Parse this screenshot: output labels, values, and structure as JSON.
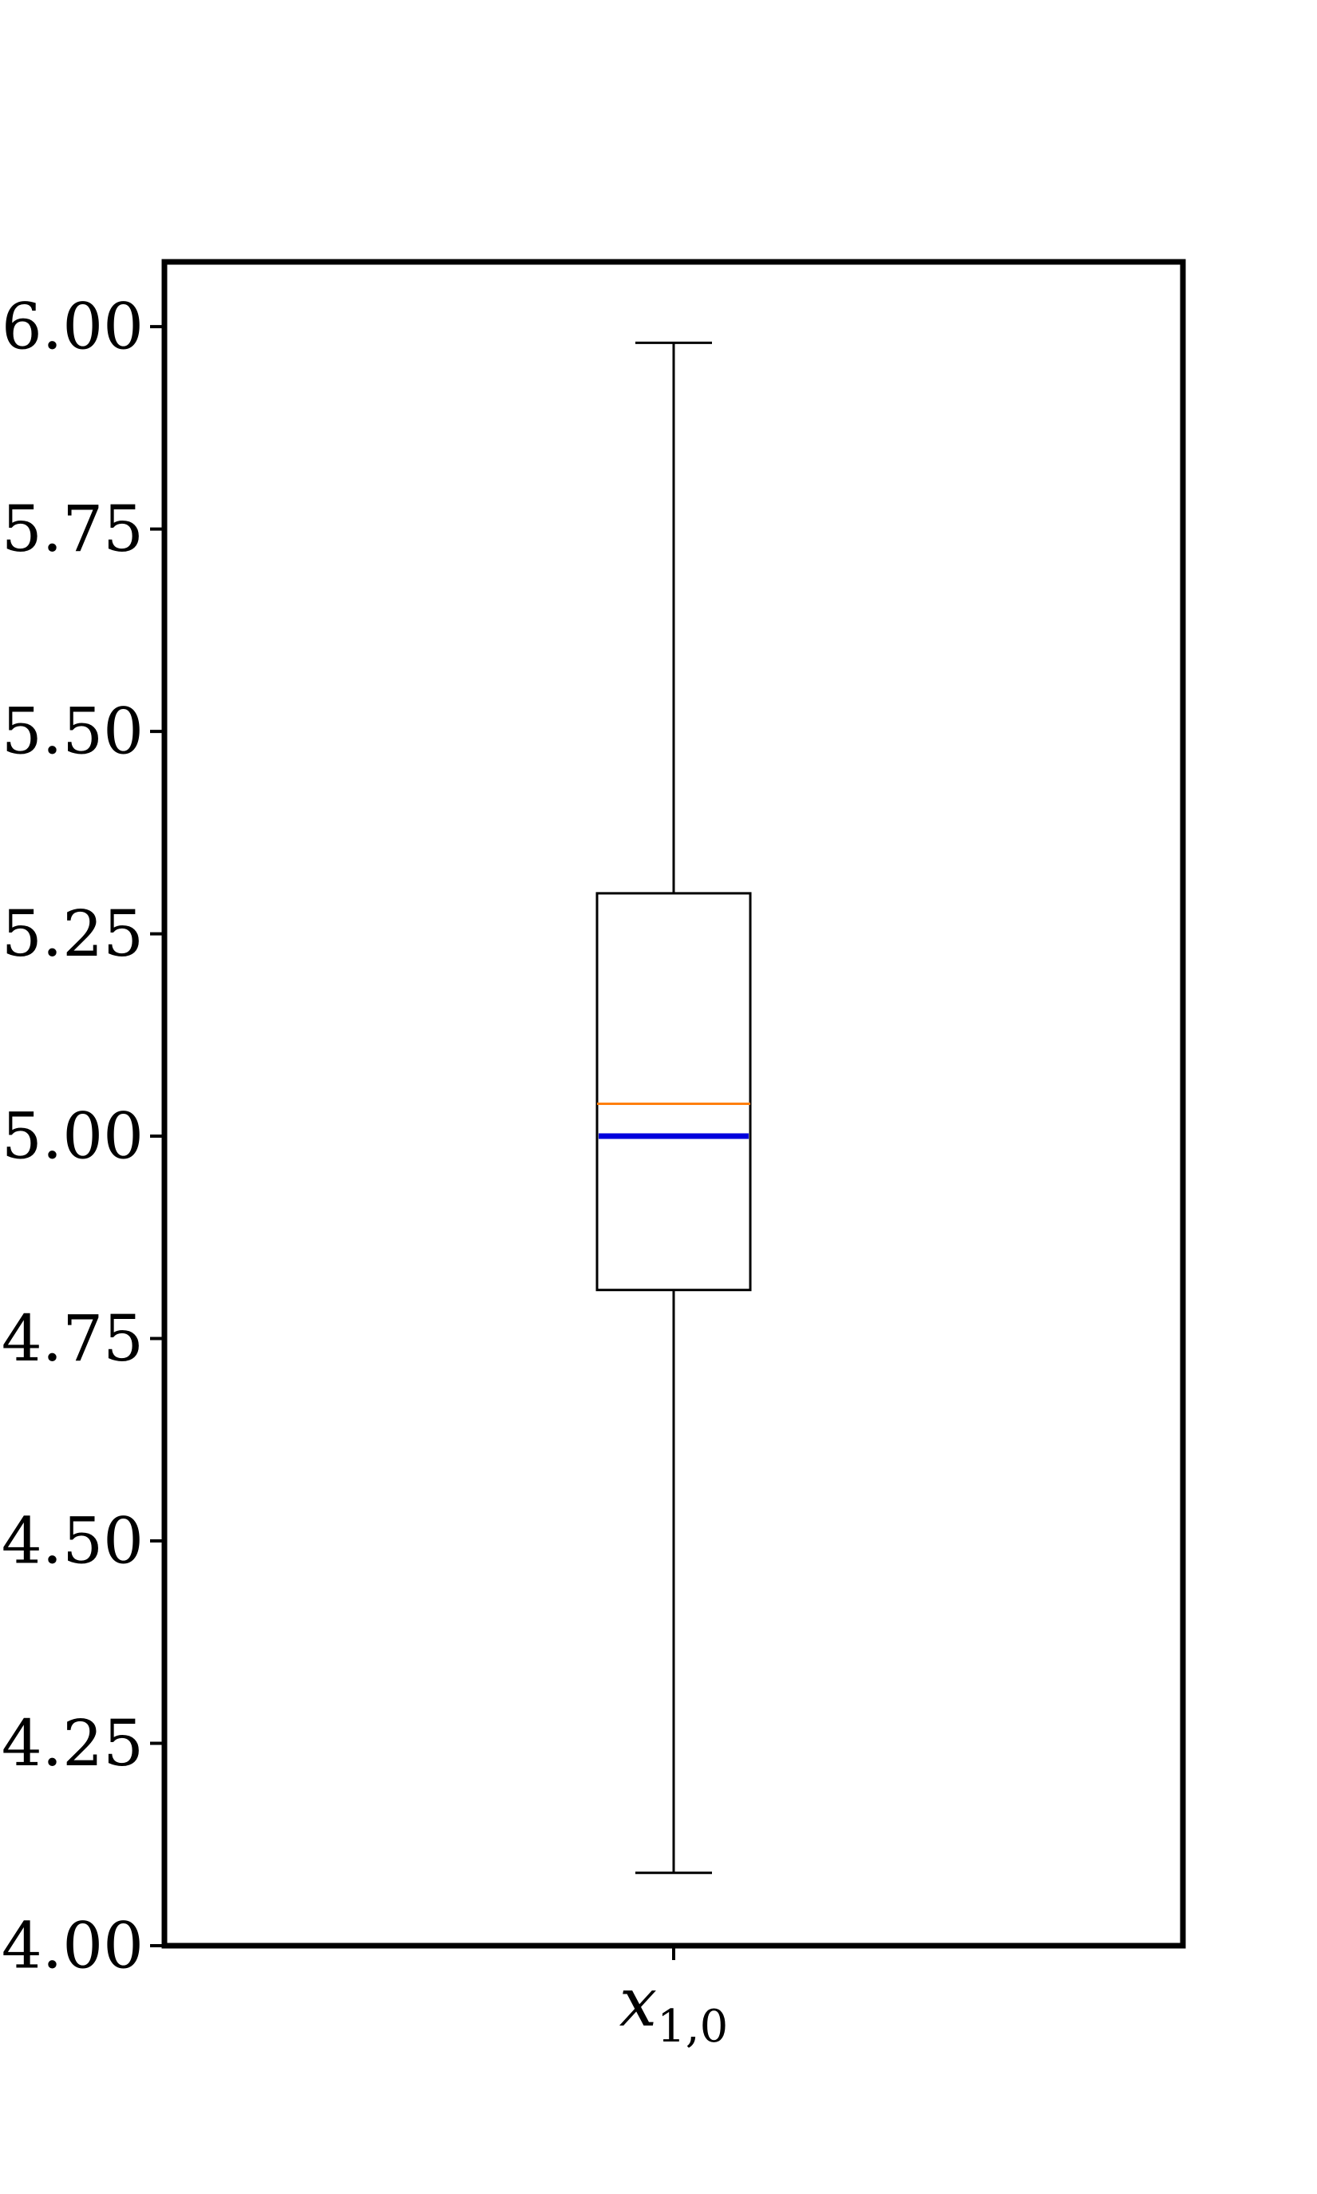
{
  "chart_data": {
    "type": "box",
    "title": "",
    "xlabel": "",
    "ylabel": "",
    "ylim": [
      4.0,
      6.08
    ],
    "y_ticks": [
      "4.00",
      "4.25",
      "4.50",
      "4.75",
      "5.00",
      "5.25",
      "5.50",
      "5.75",
      "6.00"
    ],
    "grid": false,
    "categories": [
      {
        "main": "x",
        "sub": "1,0"
      }
    ],
    "boxes": [
      {
        "whisker_low": 4.09,
        "q1": 4.81,
        "median": 5.04,
        "q3": 5.3,
        "whisker_high": 5.98,
        "reference_line": 5.0
      }
    ],
    "colors": {
      "axes": "#000000",
      "box": "#000000",
      "median": "#ff7f0e",
      "reference_line": "#0000dd"
    }
  }
}
